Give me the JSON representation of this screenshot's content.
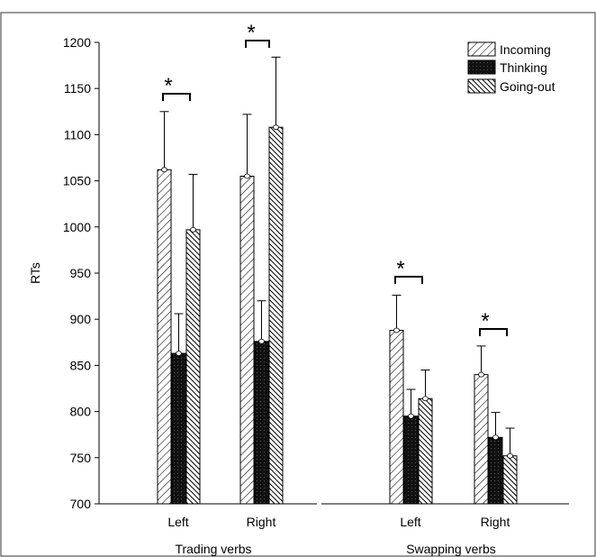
{
  "chart_data": {
    "type": "bar",
    "ylabel": "RTs",
    "ylim": [
      700,
      1200
    ],
    "yticks": [
      "1200",
      "1150",
      "1100",
      "1050",
      "1000",
      "950",
      "900",
      "850",
      "800",
      "750",
      "700"
    ],
    "ytick_values": [
      1200,
      1150,
      1100,
      1050,
      1000,
      950,
      900,
      850,
      800,
      750,
      700
    ],
    "groups": [
      {
        "label": "Trading verbs",
        "categories": [
          "Left",
          "Right"
        ]
      },
      {
        "label": "Swapping verbs",
        "categories": [
          "Left",
          "Right"
        ]
      }
    ],
    "series": [
      {
        "name": "Incoming",
        "pattern": "diag-light",
        "values": [
          1062,
          1055,
          888,
          840
        ],
        "errors": [
          63,
          67,
          38,
          31
        ]
      },
      {
        "name": "Thinking",
        "pattern": "dark",
        "values": [
          863,
          876,
          795,
          772
        ],
        "errors": [
          43,
          44,
          29,
          27
        ]
      },
      {
        "name": "Going-out",
        "pattern": "diag-dark",
        "values": [
          997,
          1108,
          814,
          752
        ],
        "errors": [
          60,
          76,
          31,
          30
        ]
      }
    ],
    "significance": [
      {
        "group": 0,
        "category": 0,
        "label": "*"
      },
      {
        "group": 0,
        "category": 1,
        "label": "*"
      },
      {
        "group": 1,
        "category": 0,
        "label": "*"
      },
      {
        "group": 1,
        "category": 1,
        "label": "*"
      }
    ],
    "legend_position": "top-right",
    "grid": false,
    "colors": {
      "fill_light": "#ffffff",
      "fill_dark": "#111111",
      "stroke": "#000000"
    }
  }
}
